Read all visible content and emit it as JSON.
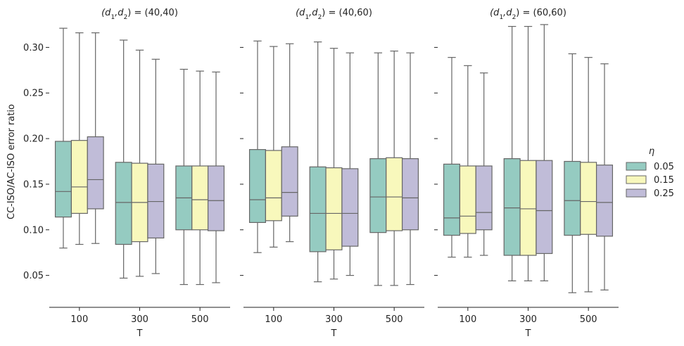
{
  "chart_data": {
    "type": "boxplot",
    "ylabel": "CC-ISO/AC-ISO error ratio",
    "xlabel": "T",
    "ylim": [
      0.015,
      0.335
    ],
    "yticks": [
      0.05,
      0.1,
      0.15,
      0.2,
      0.25,
      0.3
    ],
    "ytick_labels": [
      "0.05",
      "0.10",
      "0.15",
      "0.20",
      "0.25",
      "0.30"
    ],
    "categories": [
      "100",
      "300",
      "500"
    ],
    "legend": {
      "title": "η",
      "position": "right",
      "entries": [
        {
          "label": "0.05",
          "color": "#95cbc1"
        },
        {
          "label": "0.15",
          "color": "#f8f8bc"
        },
        {
          "label": "0.25",
          "color": "#c0bcd8"
        }
      ]
    },
    "line_color": "#666666",
    "panels": [
      {
        "title_prefix": "(d",
        "title_mid": ",d",
        "title_suffix": ") = (40,40)",
        "sub1": "1",
        "sub2": "2",
        "boxes": [
          [
            [
              0.08,
              0.114,
              0.142,
              0.197,
              0.321
            ],
            [
              0.084,
              0.118,
              0.147,
              0.198,
              0.316
            ],
            [
              0.085,
              0.123,
              0.155,
              0.202,
              0.316
            ]
          ],
          [
            [
              0.047,
              0.084,
              0.13,
              0.174,
              0.308
            ],
            [
              0.049,
              0.087,
              0.13,
              0.173,
              0.297
            ],
            [
              0.052,
              0.091,
              0.131,
              0.172,
              0.287
            ]
          ],
          [
            [
              0.04,
              0.1,
              0.135,
              0.17,
              0.276
            ],
            [
              0.04,
              0.1,
              0.133,
              0.17,
              0.274
            ],
            [
              0.042,
              0.099,
              0.132,
              0.17,
              0.273
            ]
          ]
        ]
      },
      {
        "title_prefix": "(d",
        "title_mid": ",d",
        "title_suffix": ") = (40,60)",
        "sub1": "1",
        "sub2": "2",
        "boxes": [
          [
            [
              0.075,
              0.108,
              0.133,
              0.188,
              0.307
            ],
            [
              0.081,
              0.11,
              0.135,
              0.187,
              0.301
            ],
            [
              0.087,
              0.115,
              0.141,
              0.191,
              0.304
            ]
          ],
          [
            [
              0.043,
              0.076,
              0.118,
              0.169,
              0.306
            ],
            [
              0.046,
              0.078,
              0.118,
              0.168,
              0.299
            ],
            [
              0.05,
              0.082,
              0.118,
              0.167,
              0.294
            ]
          ],
          [
            [
              0.039,
              0.097,
              0.136,
              0.178,
              0.294
            ],
            [
              0.039,
              0.099,
              0.136,
              0.179,
              0.296
            ],
            [
              0.04,
              0.1,
              0.135,
              0.178,
              0.294
            ]
          ]
        ]
      },
      {
        "title_prefix": "(d",
        "title_mid": ",d",
        "title_suffix": ") = (60,60)",
        "sub1": "1",
        "sub2": "2",
        "boxes": [
          [
            [
              0.07,
              0.094,
              0.113,
              0.172,
              0.289
            ],
            [
              0.07,
              0.096,
              0.115,
              0.17,
              0.28
            ],
            [
              0.072,
              0.1,
              0.119,
              0.17,
              0.272
            ]
          ],
          [
            [
              0.044,
              0.072,
              0.124,
              0.178,
              0.323
            ],
            [
              0.044,
              0.072,
              0.123,
              0.176,
              0.323
            ],
            [
              0.044,
              0.074,
              0.121,
              0.176,
              0.325
            ]
          ],
          [
            [
              0.031,
              0.094,
              0.132,
              0.175,
              0.293
            ],
            [
              0.032,
              0.095,
              0.131,
              0.174,
              0.289
            ],
            [
              0.034,
              0.093,
              0.13,
              0.171,
              0.282
            ]
          ]
        ]
      }
    ]
  }
}
